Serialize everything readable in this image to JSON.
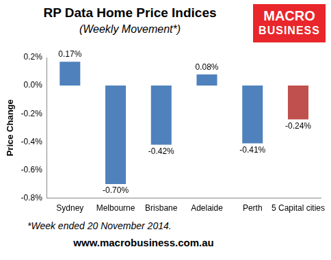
{
  "chart_data": {
    "type": "bar",
    "title": "RP Data Home Price Indices",
    "subtitle": "(Weekly Movement*)",
    "y_label": "Price Change",
    "categories": [
      "Sydney",
      "Melbourne",
      "Brisbane",
      "Adelaide",
      "Perth",
      "5 Capital cities"
    ],
    "values": [
      0.17,
      -0.7,
      -0.42,
      0.08,
      -0.41,
      -0.24
    ],
    "value_labels": [
      "0.17%",
      "-0.70%",
      "-0.42%",
      "0.08%",
      "-0.41%",
      "-0.24%"
    ],
    "colors": [
      "#4f81bd",
      "#4f81bd",
      "#4f81bd",
      "#4f81bd",
      "#4f81bd",
      "#c0504d"
    ],
    "ylim": [
      -0.8,
      0.2
    ],
    "yticks": [
      {
        "value": -0.8,
        "label": "-0.8%"
      },
      {
        "value": -0.6,
        "label": "-0.6%"
      },
      {
        "value": -0.4,
        "label": "-0.4%"
      },
      {
        "value": -0.2,
        "label": "-0.2%"
      },
      {
        "value": 0,
        "label": "0.0%"
      },
      {
        "value": 0.2,
        "label": "0.2%"
      }
    ],
    "grid": false,
    "data_labels": true,
    "annotations": {
      "footnote": "*Week ended 20 November 2014.",
      "source": "www.macrobusiness.com.au",
      "logo": [
        "MACRO",
        "BUSINESS"
      ]
    }
  }
}
